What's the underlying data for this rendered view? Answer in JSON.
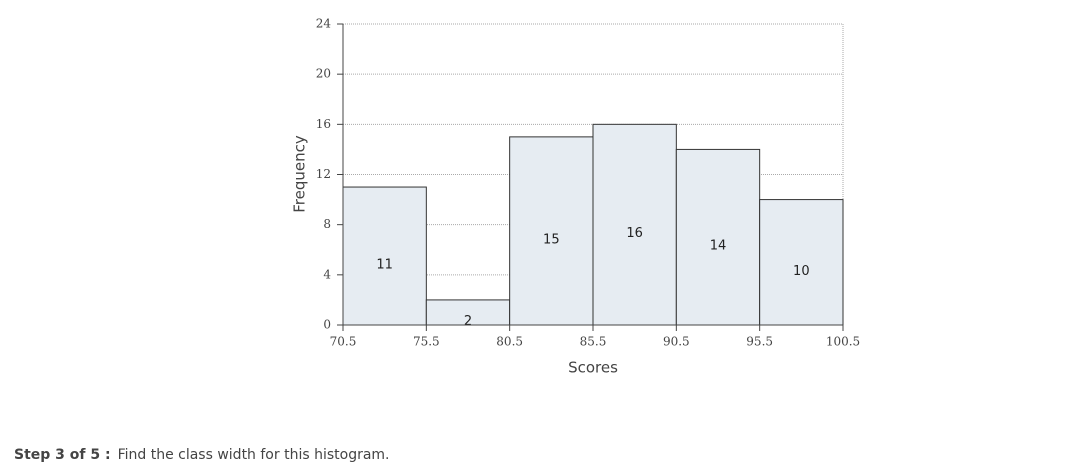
{
  "chart_data": {
    "type": "histogram",
    "x_label": "Scores",
    "y_label": "Frequency",
    "bins": [
      70.5,
      75.5,
      80.5,
      85.5,
      90.5,
      95.5,
      100.5
    ],
    "values": [
      11,
      2,
      15,
      16,
      14,
      10
    ],
    "color": "#e6ecf2",
    "edge_color": "#333333",
    "xlim": [
      70.5,
      100.5
    ],
    "xticks": [
      70.5,
      75.5,
      80.5,
      85.5,
      90.5,
      95.5,
      100.5
    ],
    "ylim": [
      0,
      24
    ],
    "yticks": [
      0,
      4,
      8,
      12,
      16,
      20,
      24
    ],
    "grid": true
  },
  "step": {
    "label": "Step 3 of 5 :",
    "text": "Find the class width for this histogram."
  }
}
